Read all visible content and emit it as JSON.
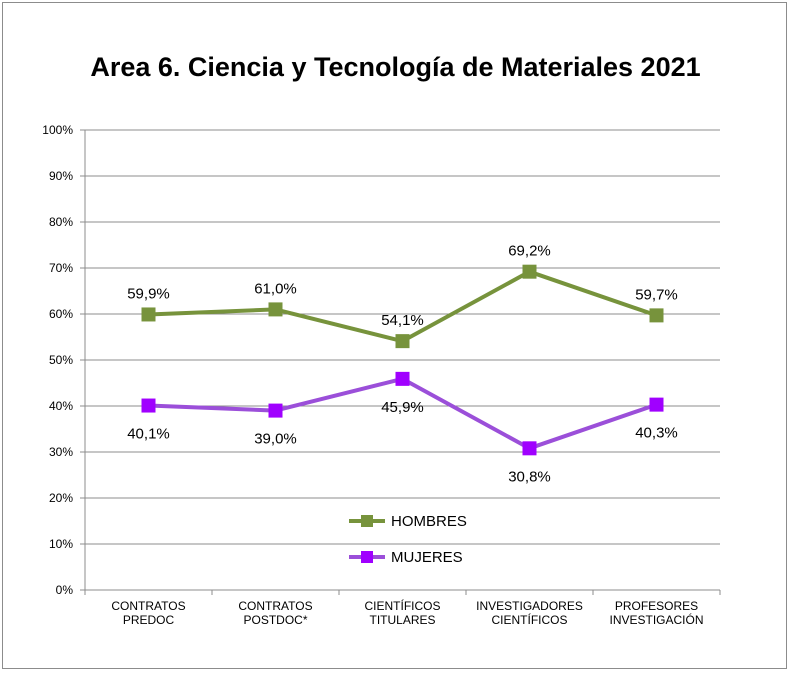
{
  "chart_data": {
    "type": "line",
    "title": "Area 6. Ciencia y Tecnología de Materiales 2021",
    "categories": [
      [
        "CONTRATOS",
        "PREDOC"
      ],
      [
        "CONTRATOS",
        "POSTDOC*"
      ],
      [
        "CIENTÍFICOS",
        "TITULARES"
      ],
      [
        "INVESTIGADORES",
        "CIENTÍFICOS"
      ],
      [
        "PROFESORES",
        "INVESTIGACIÓN"
      ]
    ],
    "ylim": [
      0,
      100
    ],
    "y_ticks": [
      0,
      10,
      20,
      30,
      40,
      50,
      60,
      70,
      80,
      90,
      100
    ],
    "y_tick_labels": [
      "0%",
      "10%",
      "20%",
      "30%",
      "40%",
      "50%",
      "60%",
      "70%",
      "80%",
      "90%",
      "100%"
    ],
    "grid": true,
    "legend_position": "inside-bottom-center",
    "series": [
      {
        "name": "HOMBRES",
        "color": "#77933c",
        "marker": "square",
        "values": [
          59.9,
          61.0,
          54.1,
          69.2,
          59.7
        ],
        "labels": [
          "59,9%",
          "61,0%",
          "54,1%",
          "69,2%",
          "59,7%"
        ],
        "label_position": "above"
      },
      {
        "name": "MUJERES",
        "color": "#9b4fd9",
        "marker_color": "#a000ff",
        "marker": "square",
        "values": [
          40.1,
          39.0,
          45.9,
          30.8,
          40.3
        ],
        "labels": [
          "40,1%",
          "39,0%",
          "45,9%",
          "30,8%",
          "40,3%"
        ],
        "label_position": "below"
      }
    ]
  }
}
